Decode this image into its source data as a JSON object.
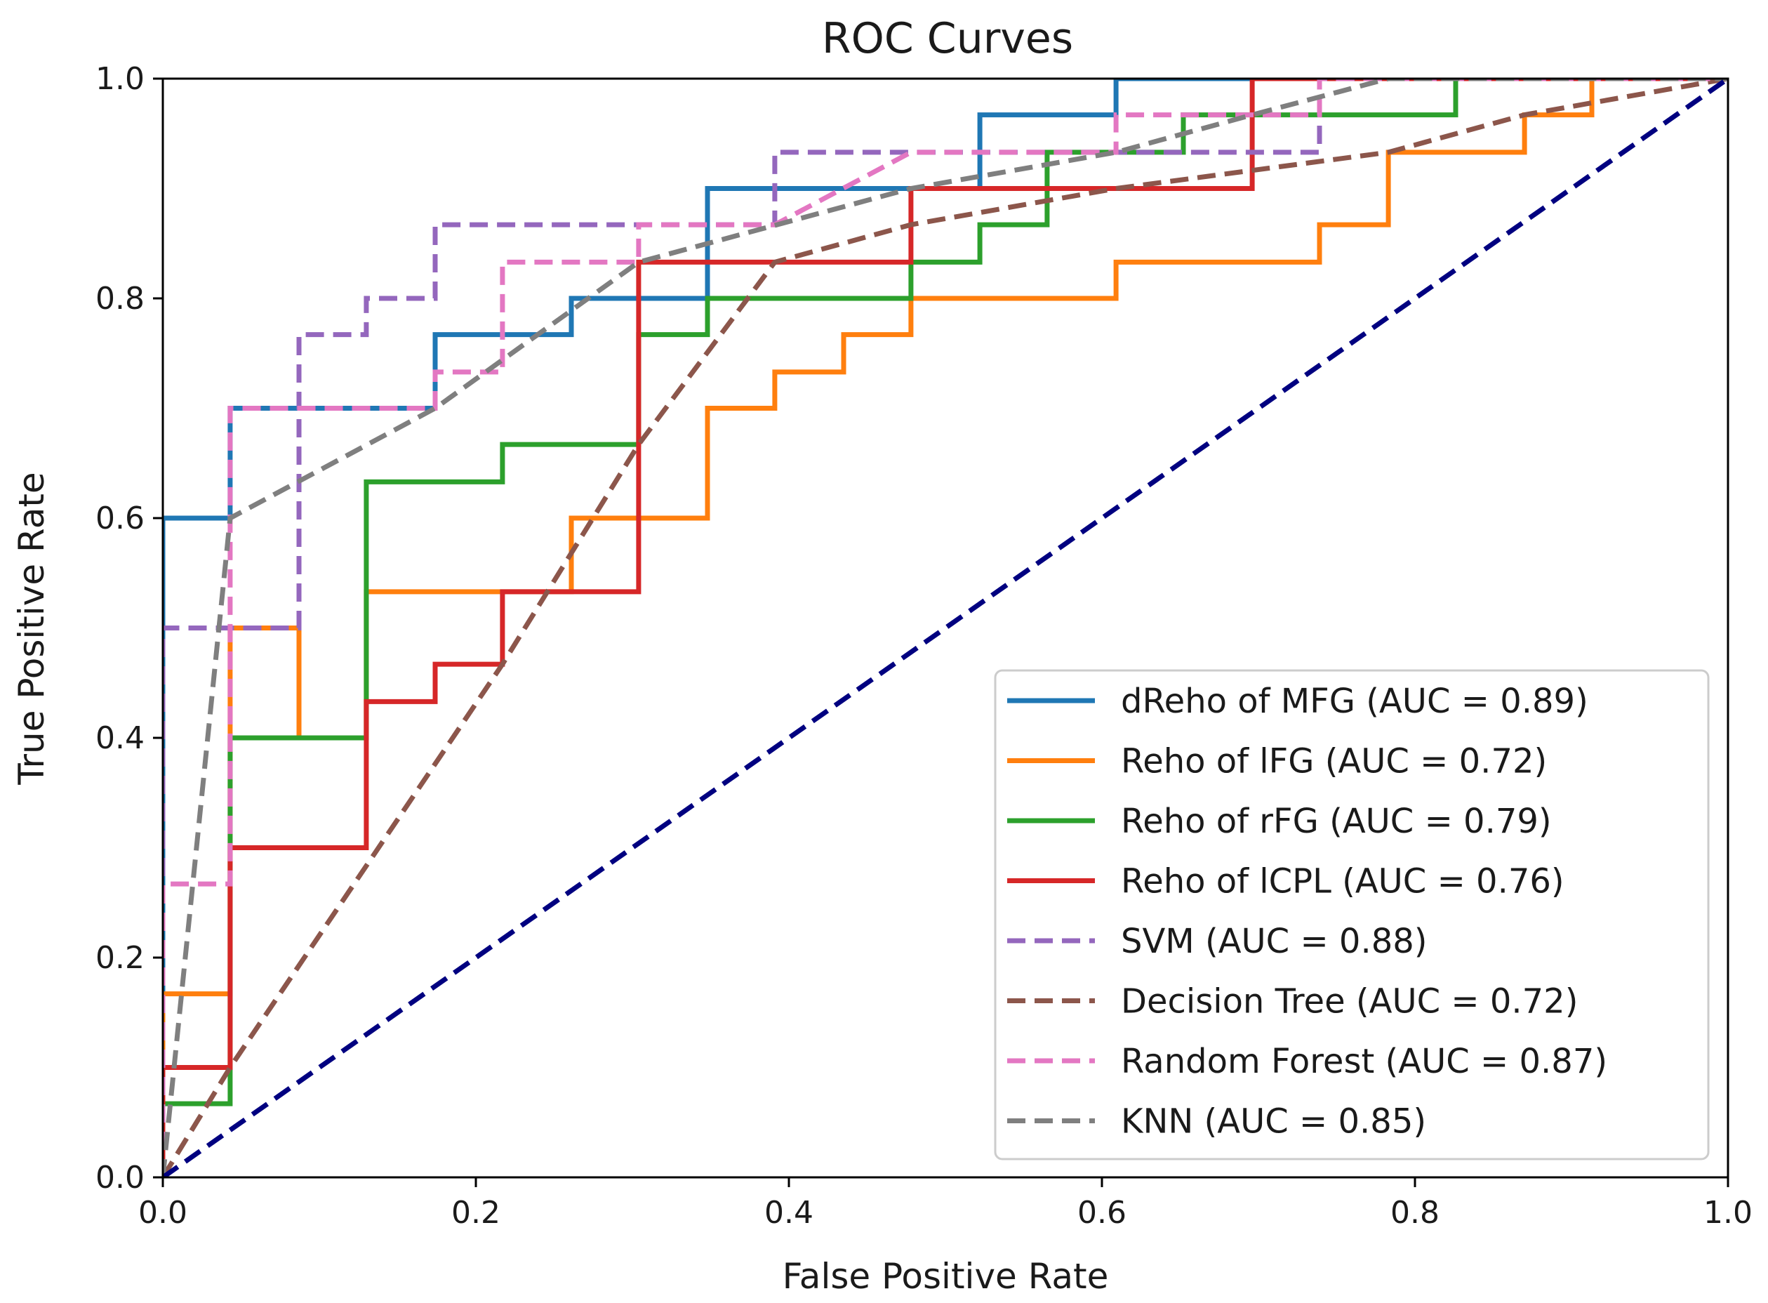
{
  "chart_data": {
    "type": "line",
    "title": "ROC Curves",
    "xlabel": "False Positive Rate",
    "ylabel": "True Positive Rate",
    "xlim": [
      0,
      1
    ],
    "ylim": [
      0,
      1
    ],
    "xticks": [
      "0.0",
      "0.2",
      "0.4",
      "0.6",
      "0.8",
      "1.0"
    ],
    "yticks": [
      "0.0",
      "0.2",
      "0.4",
      "0.6",
      "0.8",
      "1.0"
    ],
    "grid": false,
    "legend_position": "lower-right",
    "reference_line": {
      "x": [
        0,
        1
      ],
      "y": [
        0,
        1
      ],
      "color": "#000080",
      "style": "dashed"
    },
    "series": [
      {
        "name": "dReho of MFG (AUC = 0.89)",
        "color": "#1f77b4",
        "style": "solid",
        "x": [
          0,
          0,
          0.043,
          0.043,
          0.174,
          0.174,
          0.261,
          0.261,
          0.348,
          0.348,
          0.522,
          0.522,
          0.609,
          0.609,
          1.0
        ],
        "y": [
          0,
          0.6,
          0.6,
          0.7,
          0.7,
          0.767,
          0.767,
          0.8,
          0.8,
          0.9,
          0.9,
          0.967,
          0.967,
          1.0,
          1.0
        ]
      },
      {
        "name": "Reho of lFG (AUC = 0.72)",
        "color": "#ff7f0e",
        "style": "solid",
        "x": [
          0,
          0,
          0.043,
          0.043,
          0.087,
          0.087,
          0.13,
          0.13,
          0.261,
          0.261,
          0.348,
          0.348,
          0.391,
          0.391,
          0.435,
          0.435,
          0.478,
          0.478,
          0.609,
          0.609,
          0.739,
          0.739,
          0.783,
          0.783,
          0.87,
          0.87,
          0.913,
          0.913,
          1.0
        ],
        "y": [
          0,
          0.167,
          0.167,
          0.5,
          0.5,
          0.4,
          0.4,
          0.533,
          0.533,
          0.6,
          0.6,
          0.7,
          0.7,
          0.733,
          0.733,
          0.767,
          0.767,
          0.8,
          0.8,
          0.833,
          0.833,
          0.867,
          0.867,
          0.933,
          0.933,
          0.967,
          0.967,
          1.0,
          1.0
        ]
      },
      {
        "name": "Reho of rFG (AUC = 0.79)",
        "color": "#2ca02c",
        "style": "solid",
        "x": [
          0,
          0,
          0.043,
          0.043,
          0.13,
          0.13,
          0.217,
          0.217,
          0.304,
          0.304,
          0.348,
          0.348,
          0.478,
          0.478,
          0.522,
          0.522,
          0.565,
          0.565,
          0.652,
          0.652,
          0.826,
          0.826,
          1.0
        ],
        "y": [
          0,
          0.067,
          0.067,
          0.4,
          0.4,
          0.633,
          0.633,
          0.667,
          0.667,
          0.767,
          0.767,
          0.8,
          0.8,
          0.833,
          0.833,
          0.867,
          0.867,
          0.933,
          0.933,
          0.967,
          0.967,
          1.0,
          1.0
        ]
      },
      {
        "name": "Reho of lCPL (AUC = 0.76)",
        "color": "#d62728",
        "style": "solid",
        "x": [
          0,
          0,
          0.043,
          0.043,
          0.13,
          0.13,
          0.174,
          0.174,
          0.217,
          0.217,
          0.304,
          0.304,
          0.478,
          0.478,
          0.696,
          0.696,
          1.0
        ],
        "y": [
          0,
          0.1,
          0.1,
          0.3,
          0.3,
          0.433,
          0.433,
          0.467,
          0.467,
          0.533,
          0.533,
          0.833,
          0.833,
          0.9,
          0.9,
          1.0,
          1.0
        ]
      },
      {
        "name": "SVM (AUC = 0.88)",
        "color": "#9467bd",
        "style": "dashed",
        "x": [
          0,
          0,
          0.087,
          0.087,
          0.13,
          0.13,
          0.174,
          0.174,
          0.348,
          0.348,
          0.391,
          0.391,
          0.739,
          0.739,
          1.0
        ],
        "y": [
          0,
          0.5,
          0.5,
          0.767,
          0.767,
          0.8,
          0.8,
          0.867,
          0.867,
          0.867,
          0.867,
          0.933,
          0.933,
          1.0,
          1.0
        ]
      },
      {
        "name": "Decision Tree (AUC = 0.72)",
        "color": "#8c564b",
        "style": "dashed",
        "x": [
          0,
          0.043,
          0.217,
          0.304,
          0.391,
          0.478,
          0.609,
          0.783,
          0.87,
          1.0
        ],
        "y": [
          0,
          0.1,
          0.467,
          0.667,
          0.833,
          0.867,
          0.9,
          0.933,
          0.967,
          1.0
        ]
      },
      {
        "name": "Random Forest (AUC = 0.87)",
        "color": "#e377c2",
        "style": "dashed",
        "x": [
          0,
          0,
          0.043,
          0.043,
          0.174,
          0.174,
          0.217,
          0.217,
          0.261,
          0.261,
          0.304,
          0.304,
          0.391,
          0.391,
          0.478,
          0.478,
          0.609,
          0.609,
          0.739,
          0.739,
          1.0
        ],
        "y": [
          0,
          0.267,
          0.267,
          0.7,
          0.7,
          0.733,
          0.733,
          0.833,
          0.833,
          0.833,
          0.833,
          0.867,
          0.867,
          0.867,
          0.933,
          0.933,
          0.933,
          0.967,
          0.967,
          1.0,
          1.0
        ]
      },
      {
        "name": "KNN (AUC = 0.85)",
        "color": "#7f7f7f",
        "style": "dashed",
        "x": [
          0,
          0.043,
          0.174,
          0.304,
          0.478,
          0.609,
          0.696,
          0.783,
          1.0
        ],
        "y": [
          0,
          0.6,
          0.7,
          0.833,
          0.9,
          0.933,
          0.967,
          1.0,
          1.0
        ]
      }
    ]
  }
}
